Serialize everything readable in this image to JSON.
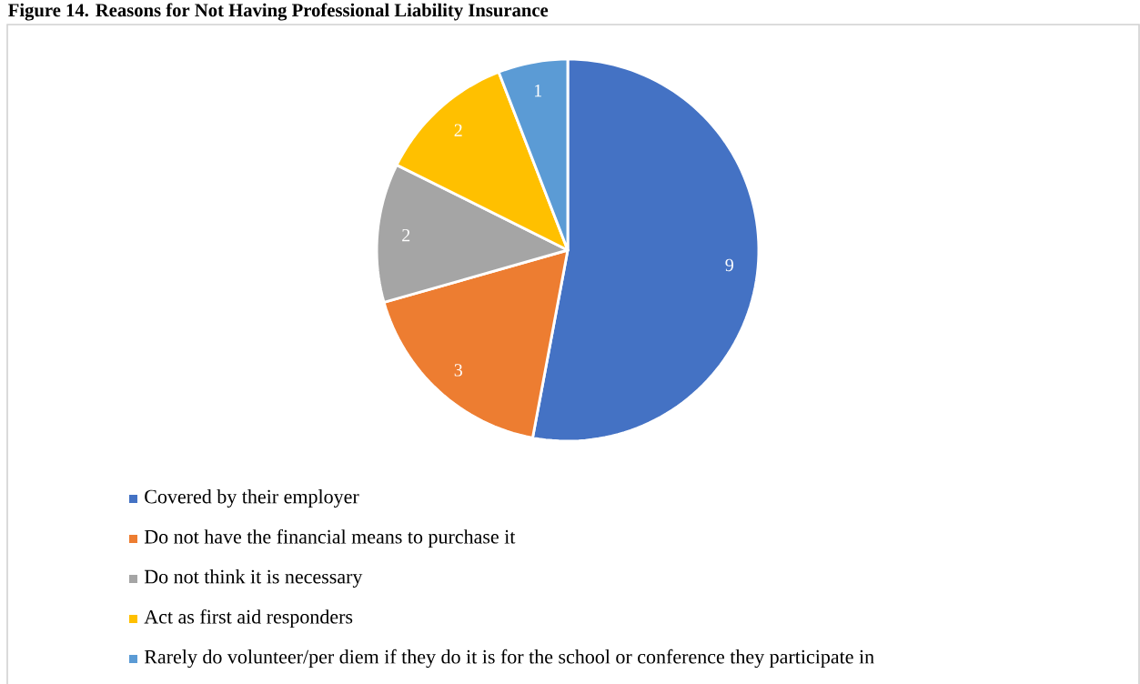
{
  "chart_data": {
    "type": "pie",
    "title": "Figure 14. Reasons for Not Having Professional Liability Insurance",
    "categories": [
      "Covered by their employer",
      "Do not have the financial means to purchase it",
      "Do not think it is necessary",
      "Act as first aid responders",
      "Rarely do volunteer/per diem if they do it is for the school or conference they participate in"
    ],
    "values": [
      9,
      3,
      2,
      2,
      1
    ],
    "colors": [
      "#4472c4",
      "#ed7d31",
      "#a5a5a5",
      "#ffc000",
      "#5b9bd5"
    ],
    "data_labels": true,
    "legend": "bottom"
  }
}
